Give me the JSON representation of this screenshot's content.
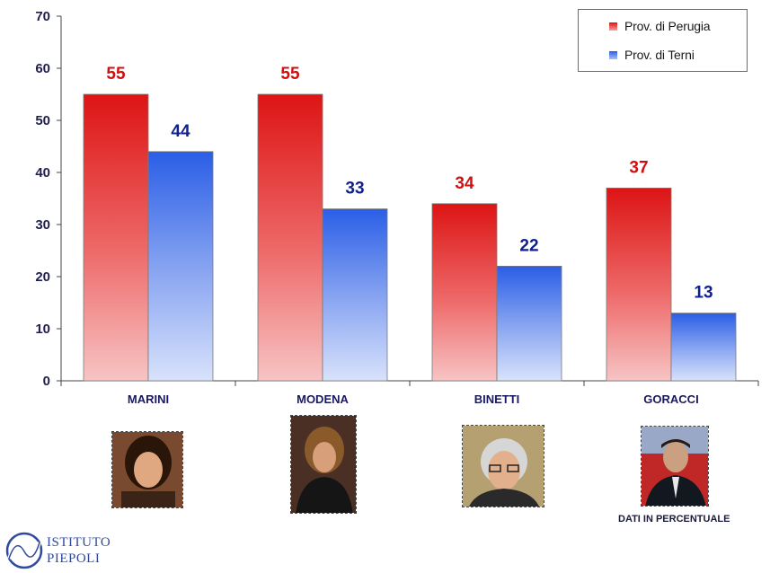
{
  "chart_data": {
    "type": "bar",
    "categories": [
      "MARINI",
      "MODENA",
      "BINETTI",
      "GORACCI"
    ],
    "series": [
      {
        "name": "Prov. di Perugia",
        "values": [
          55,
          55,
          34,
          37
        ],
        "color": "#e02020",
        "label_color": "#d01010"
      },
      {
        "name": "Prov. di Terni",
        "values": [
          44,
          33,
          22,
          13
        ],
        "color": "#2a5fe8",
        "label_color": "#102090"
      }
    ],
    "ylim": [
      0,
      70
    ],
    "yticks": [
      0,
      10,
      20,
      30,
      40,
      50,
      60,
      70
    ],
    "legend_position": "top-right",
    "grid": false
  },
  "legend": {
    "items": [
      {
        "label": "Prov. di Perugia"
      },
      {
        "label": "Prov. di Terni"
      }
    ]
  },
  "footnote": "DATI IN PERCENTUALE",
  "logo": {
    "line1": "ISTITUTO",
    "line2": "PIEPOLI"
  }
}
